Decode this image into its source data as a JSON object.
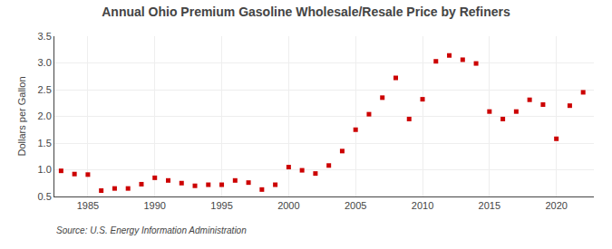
{
  "chart_data": {
    "type": "scatter",
    "title": "Annual Ohio Premium Gasoline Wholesale/Resale Price by Refiners",
    "ylabel": "Dollars per Gallon",
    "annotations": [
      "Source: U.S. Energy Information Administration"
    ],
    "x": [
      1983,
      1984,
      1985,
      1986,
      1987,
      1988,
      1989,
      1990,
      1991,
      1992,
      1993,
      1994,
      1995,
      1996,
      1997,
      1998,
      1999,
      2000,
      2001,
      2002,
      2003,
      2004,
      2005,
      2006,
      2007,
      2008,
      2009,
      2010,
      2011,
      2012,
      2013,
      2014,
      2015,
      2016,
      2017,
      2018,
      2019,
      2020,
      2021,
      2022
    ],
    "values": [
      0.98,
      0.92,
      0.91,
      0.61,
      0.65,
      0.65,
      0.73,
      0.85,
      0.8,
      0.75,
      0.7,
      0.72,
      0.72,
      0.8,
      0.76,
      0.63,
      0.72,
      1.05,
      0.99,
      0.93,
      1.08,
      1.35,
      1.75,
      2.04,
      2.35,
      2.72,
      1.95,
      2.32,
      3.03,
      3.14,
      3.06,
      2.99,
      2.09,
      1.95,
      2.09,
      2.31,
      2.22,
      1.58,
      2.2,
      2.45
    ],
    "color": "#cc0000",
    "marker": "square",
    "xlim": [
      1982.5,
      2022.8
    ],
    "ylim": [
      0.5,
      3.5
    ],
    "xticks": [
      1985,
      1990,
      1995,
      2000,
      2005,
      2010,
      2015,
      2020
    ],
    "yticks": [
      0.5,
      {
        "value": 1.0,
        "label": "1.0"
      },
      1.5,
      {
        "value": 2.0,
        "label": "2.0"
      },
      2.5,
      {
        "value": 3.0,
        "label": "3.0"
      },
      3.5
    ],
    "grid": true
  }
}
